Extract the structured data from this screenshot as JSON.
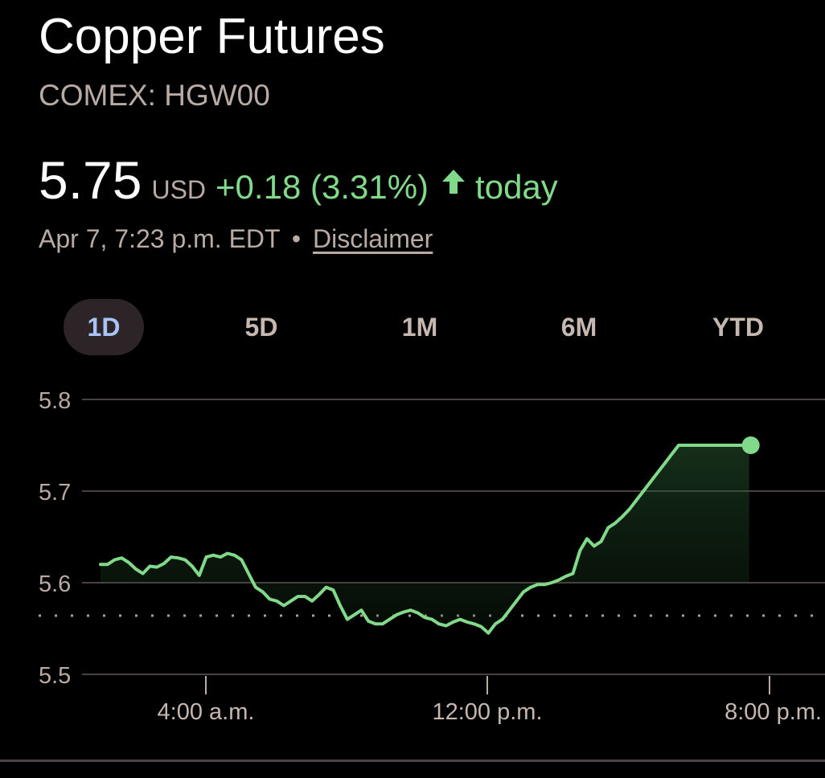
{
  "header": {
    "title": "Copper Futures",
    "ticker": "COMEX: HGW00"
  },
  "quote": {
    "price": "5.75",
    "currency": "USD",
    "change": "+0.18 (3.31%)",
    "direction_icon": "arrow-up-icon",
    "period": "today",
    "timestamp": "Apr 7, 7:23 p.m. EDT",
    "separator": "•",
    "disclaimer": "Disclaimer"
  },
  "ranges": {
    "tabs": [
      "1D",
      "5D",
      "1M",
      "6M",
      "YTD"
    ],
    "selected": "1D"
  },
  "colors": {
    "positive": "#81d98a",
    "accent": "#a8c3f5",
    "background": "#000000"
  },
  "chart_data": {
    "type": "line",
    "ylim": [
      5.5,
      5.8
    ],
    "y_ticks": [
      "5.8",
      "5.7",
      "5.6",
      "5.5"
    ],
    "x_ticks": [
      "4:00 a.m.",
      "12:00 p.m.",
      "8:00 p.m."
    ],
    "x_tick_hours": [
      4,
      12,
      20
    ],
    "previous_close": 5.564,
    "grid": true,
    "series": [
      {
        "x": [
          1.0,
          1.2,
          1.4,
          1.6,
          1.8,
          2.0,
          2.2,
          2.4,
          2.6,
          2.8,
          3.0,
          3.2,
          3.4,
          3.6,
          3.8,
          4.0,
          4.2,
          4.4,
          4.6,
          4.8,
          5.0,
          5.2,
          5.4,
          5.6,
          5.8,
          6.0,
          6.2,
          6.4,
          6.6,
          6.8,
          7.0,
          7.2,
          7.4,
          7.6,
          7.8,
          8.0,
          8.2,
          8.4,
          8.6,
          8.8,
          9.0,
          9.2,
          9.4,
          9.6,
          9.8,
          10.0,
          10.2,
          10.4,
          10.6,
          10.8,
          11.0,
          11.2,
          11.4,
          11.6,
          11.8,
          12.0,
          12.2,
          12.4,
          12.6,
          12.8,
          13.0,
          13.2,
          13.4,
          13.6,
          13.8,
          14.0,
          14.2,
          14.4,
          14.6,
          14.8,
          15.0,
          15.2,
          15.4,
          15.6,
          15.8,
          16.0,
          16.2,
          16.4,
          16.6,
          16.8,
          17.0,
          17.2,
          17.4,
          17.6,
          17.8,
          18.0,
          18.2,
          18.4,
          18.6,
          18.8,
          19.0,
          19.2,
          19.4
        ],
        "values": [
          5.62,
          5.62,
          5.625,
          5.627,
          5.622,
          5.615,
          5.61,
          5.618,
          5.617,
          5.621,
          5.628,
          5.627,
          5.625,
          5.618,
          5.608,
          5.628,
          5.63,
          5.628,
          5.632,
          5.63,
          5.625,
          5.61,
          5.595,
          5.59,
          5.582,
          5.58,
          5.575,
          5.58,
          5.585,
          5.585,
          5.58,
          5.587,
          5.595,
          5.592,
          5.575,
          5.56,
          5.565,
          5.57,
          5.558,
          5.555,
          5.555,
          5.56,
          5.565,
          5.568,
          5.57,
          5.567,
          5.562,
          5.56,
          5.555,
          5.553,
          5.557,
          5.56,
          5.557,
          5.555,
          5.552,
          5.545,
          5.555,
          5.56,
          5.57,
          5.58,
          5.59,
          5.595,
          5.598,
          5.598,
          5.6,
          5.603,
          5.607,
          5.61,
          5.635,
          5.648,
          5.64,
          5.645,
          5.66,
          5.665,
          5.672,
          5.68,
          5.69,
          5.7,
          5.71,
          5.72,
          5.73,
          5.74,
          5.75,
          5.75,
          5.75,
          5.75,
          5.75,
          5.75,
          5.75,
          5.75,
          5.75,
          5.75,
          5.75
        ]
      }
    ]
  }
}
